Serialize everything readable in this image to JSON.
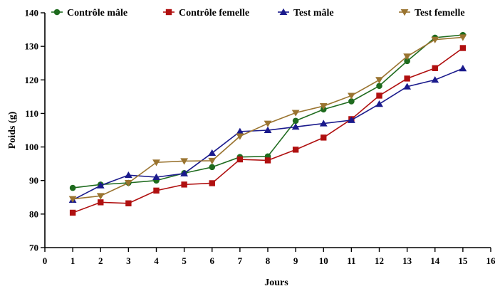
{
  "chart_data": {
    "type": "line",
    "xlabel": "Jours",
    "ylabel": "Poids (g)",
    "xlim": [
      0,
      16
    ],
    "ylim": [
      70,
      140
    ],
    "xticks": [
      0,
      1,
      2,
      3,
      4,
      5,
      6,
      7,
      8,
      9,
      10,
      11,
      12,
      13,
      14,
      15,
      16
    ],
    "yticks": [
      70,
      80,
      90,
      100,
      110,
      120,
      130,
      140
    ],
    "grid": false,
    "legend_position": "top",
    "x": [
      1,
      2,
      3,
      4,
      5,
      6,
      7,
      8,
      9,
      10,
      11,
      12,
      13,
      14,
      15
    ],
    "series": [
      {
        "name": "Contrôle mâle",
        "color": "#1e6b1e",
        "marker": "circle",
        "values": [
          87.8,
          88.8,
          89.3,
          90.0,
          92.2,
          94.0,
          97.0,
          97.2,
          107.8,
          111.2,
          113.6,
          118.2,
          125.6,
          132.6,
          133.4
        ]
      },
      {
        "name": "Contrôle femelle",
        "color": "#b01010",
        "marker": "square",
        "values": [
          80.4,
          83.5,
          83.2,
          87.0,
          88.8,
          89.2,
          96.3,
          96.0,
          99.2,
          102.8,
          108.3,
          115.3,
          120.4,
          123.5,
          129.5
        ]
      },
      {
        "name": "Test mâle",
        "color": "#1a1a8c",
        "marker": "triangle-up",
        "values": [
          84.2,
          88.5,
          91.6,
          91.0,
          92.1,
          98.2,
          104.6,
          105.0,
          106.0,
          107.0,
          108.0,
          112.8,
          118.0,
          120.0,
          123.4
        ]
      },
      {
        "name": "Test  femelle",
        "color": "#9a7430",
        "marker": "triangle-down",
        "values": [
          84.5,
          85.4,
          89.3,
          95.4,
          95.8,
          95.9,
          103.2,
          107.0,
          110.2,
          112.2,
          115.3,
          120.0,
          127.0,
          132.0,
          132.7
        ]
      }
    ]
  }
}
